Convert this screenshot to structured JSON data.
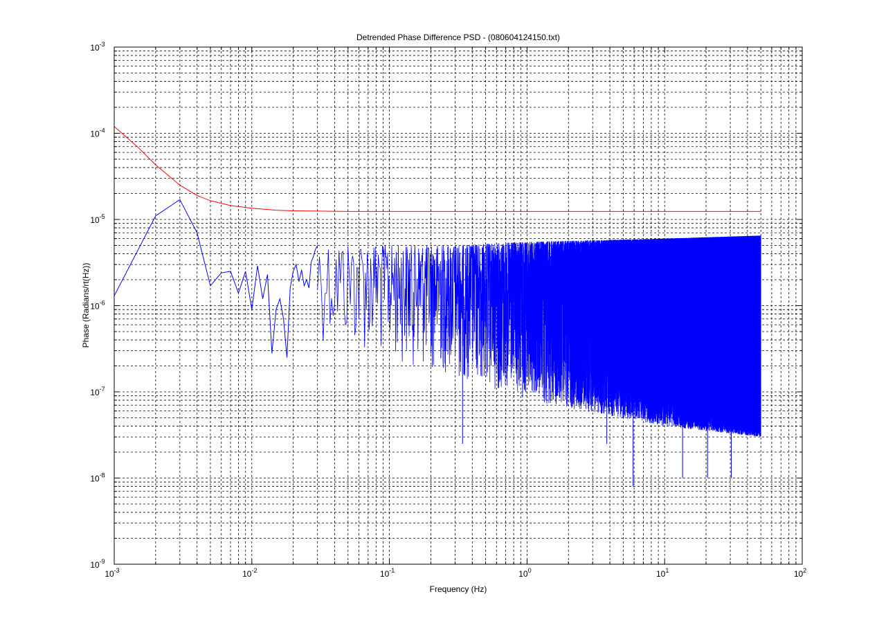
{
  "chart_data": {
    "type": "line",
    "title": "Detrended Phase Difference PSD - (080604124150.txt)",
    "xlabel": "Frequency (Hz)",
    "ylabel": "Phase (Radians/rt(Hz))",
    "xscale": "log",
    "yscale": "log",
    "xlim": [
      0.001,
      100
    ],
    "ylim": [
      1e-09,
      0.001
    ],
    "grid": true,
    "legend": "none",
    "x_ticks": [
      {
        "value": 0.001,
        "base": "10",
        "exp": "-3"
      },
      {
        "value": 0.01,
        "base": "10",
        "exp": "-2"
      },
      {
        "value": 0.1,
        "base": "10",
        "exp": "-1"
      },
      {
        "value": 1,
        "base": "10",
        "exp": "0"
      },
      {
        "value": 10,
        "base": "10",
        "exp": "1"
      },
      {
        "value": 100,
        "base": "10",
        "exp": "2"
      }
    ],
    "y_ticks": [
      {
        "value": 1e-09,
        "base": "10",
        "exp": "-9"
      },
      {
        "value": 1e-08,
        "base": "10",
        "exp": "-8"
      },
      {
        "value": 1e-07,
        "base": "10",
        "exp": "-7"
      },
      {
        "value": 1e-06,
        "base": "10",
        "exp": "-6"
      },
      {
        "value": 1e-05,
        "base": "10",
        "exp": "-5"
      },
      {
        "value": 0.0001,
        "base": "10",
        "exp": "-4"
      },
      {
        "value": 0.001,
        "base": "10",
        "exp": "-3"
      }
    ],
    "series": [
      {
        "color": "#ff0000",
        "x": [
          0.001,
          0.0015,
          0.002,
          0.003,
          0.004,
          0.005,
          0.007,
          0.01,
          0.015,
          0.02,
          0.03,
          0.05,
          0.1,
          0.3,
          1,
          3,
          10,
          50
        ],
        "y": [
          0.00012,
          6.8e-05,
          4.3e-05,
          2.5e-05,
          1.9e-05,
          1.65e-05,
          1.45e-05,
          1.35e-05,
          1.28e-05,
          1.26e-05,
          1.25e-05,
          1.24e-05,
          1.24e-05,
          1.24e-05,
          1.24e-05,
          1.24e-05,
          1.24e-05,
          1.24e-05
        ]
      },
      {
        "color": "#0000ff",
        "x": [
          0.001,
          0.002,
          0.003,
          0.004,
          0.005,
          0.006,
          0.007,
          0.008,
          0.009,
          0.01,
          0.011,
          0.012,
          0.013,
          0.014,
          0.015,
          0.016,
          0.017,
          0.018,
          0.019,
          0.02,
          0.021,
          0.022,
          0.023,
          0.024,
          0.025,
          0.026,
          0.027,
          0.028,
          0.029,
          0.03
        ],
        "y": [
          1.3e-06,
          1.1e-05,
          1.7e-05,
          7e-06,
          1.7e-06,
          2.4e-06,
          2.5e-06,
          1.4e-06,
          2.5e-06,
          9e-07,
          2.9e-06,
          1.2e-06,
          2.3e-06,
          2.8e-07,
          9e-07,
          1.2e-06,
          7e-07,
          2.5e-07,
          1.6e-06,
          2.5e-06,
          3e-06,
          1.9e-06,
          2.6e-06,
          1.7e-06,
          2e-06,
          1.6e-06,
          3.2e-06,
          3.7e-06,
          4.5e-06,
          5e-06
        ],
        "noise_band": {
          "x_range": [
            0.03,
            50
          ],
          "upper_envelope": [
            [
              0.03,
              5e-06
            ],
            [
              0.3,
              5e-06
            ],
            [
              1,
              5.5e-06
            ],
            [
              10,
              6e-06
            ],
            [
              50,
              6.5e-06
            ]
          ],
          "lower_envelope": [
            [
              0.03,
              4e-07
            ],
            [
              0.3,
              1.5e-07
            ],
            [
              1,
              8e-08
            ],
            [
              10,
              4e-08
            ],
            [
              50,
              3e-08
            ]
          ],
          "deepest_dips": [
            [
              0.34,
              2.5e-08
            ],
            [
              3.8,
              2.5e-08
            ],
            [
              5.9,
              8e-09
            ],
            [
              13.5,
              1e-08
            ],
            [
              20.5,
              1e-08
            ],
            [
              30.5,
              1e-08
            ]
          ]
        }
      }
    ]
  }
}
